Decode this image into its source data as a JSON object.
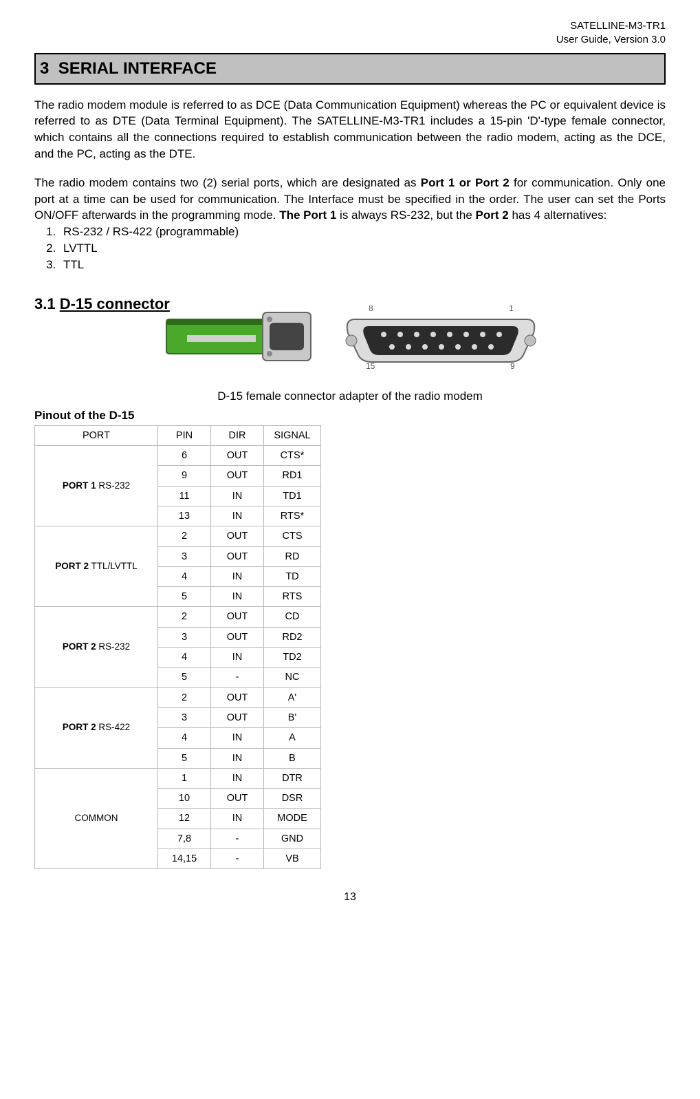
{
  "header": {
    "product": "SATELLINE-M3-TR1",
    "guide": "User Guide, Version 3.0"
  },
  "section": {
    "number": "3",
    "title": "SERIAL INTERFACE"
  },
  "para1_a": "The radio modem module is referred to as DCE (Data Communication Equipment) whereas the PC or equivalent device is referred to as DTE (Data Terminal Equipment). The SATELLINE-M3-TR1 includes a 15-pin 'D'-type female connector, which contains all the connections required to establish communication between the radio modem, acting as the DCE, and the PC, acting as the DTE.",
  "para2": {
    "a": "The radio modem contains two (2) serial ports, which are designated as ",
    "b": "Port 1 or Port 2",
    "c": " for communication. Only one port at a time can be used for communication. The Interface must be specified in the order. The user can set the Ports ON/OFF afterwards in the programming mode. ",
    "d": "The Port 1",
    "e": " is always RS-232, but the ",
    "f": "Port 2",
    "g": " has 4 alternatives:"
  },
  "alternatives": [
    "RS-232 / RS-422 (programmable)",
    "LVTTL",
    "TTL"
  ],
  "sub": {
    "number": "3.1",
    "title": "D-15 connector"
  },
  "caption": "D-15 female connector adapter of the radio modem",
  "table_title": "Pinout of the D-15",
  "table": {
    "headers": [
      "PORT",
      "PIN",
      "DIR",
      "SIGNAL"
    ],
    "groups": [
      {
        "port_bold": "PORT 1",
        "port_rest": " RS-232",
        "rows": [
          {
            "pin": "6",
            "dir": "OUT",
            "sig": "CTS*"
          },
          {
            "pin": "9",
            "dir": "OUT",
            "sig": "RD1"
          },
          {
            "pin": "11",
            "dir": "IN",
            "sig": "TD1"
          },
          {
            "pin": "13",
            "dir": "IN",
            "sig": "RTS*"
          }
        ]
      },
      {
        "port_bold": "PORT 2",
        "port_rest": " TTL/LVTTL",
        "rows": [
          {
            "pin": "2",
            "dir": "OUT",
            "sig": "CTS"
          },
          {
            "pin": "3",
            "dir": "OUT",
            "sig": "RD"
          },
          {
            "pin": "4",
            "dir": "IN",
            "sig": "TD"
          },
          {
            "pin": "5",
            "dir": "IN",
            "sig": "RTS"
          }
        ]
      },
      {
        "port_bold": "PORT 2",
        "port_rest": " RS-232",
        "rows": [
          {
            "pin": "2",
            "dir": "OUT",
            "sig": "CD"
          },
          {
            "pin": "3",
            "dir": "OUT",
            "sig": "RD2"
          },
          {
            "pin": "4",
            "dir": "IN",
            "sig": "TD2"
          },
          {
            "pin": "5",
            "dir": "-",
            "sig": "NC"
          }
        ]
      },
      {
        "port_bold": "PORT 2",
        "port_rest": " RS-422",
        "rows": [
          {
            "pin": "2",
            "dir": "OUT",
            "sig": "A'"
          },
          {
            "pin": "3",
            "dir": "OUT",
            "sig": "B'"
          },
          {
            "pin": "4",
            "dir": "IN",
            "sig": "A"
          },
          {
            "pin": "5",
            "dir": "IN",
            "sig": "B"
          }
        ]
      },
      {
        "port_bold": "",
        "port_rest": "COMMON",
        "rows": [
          {
            "pin": "1",
            "dir": "IN",
            "sig": "DTR"
          },
          {
            "pin": "10",
            "dir": "OUT",
            "sig": "DSR"
          },
          {
            "pin": "12",
            "dir": "IN",
            "sig": "MODE"
          },
          {
            "pin": "7,8",
            "dir": "-",
            "sig": "GND"
          },
          {
            "pin": "14,15",
            "dir": "-",
            "sig": "VB"
          }
        ]
      }
    ]
  },
  "page_number": "13",
  "colors": {
    "pcb_green": "#4aa82a",
    "conn_grey": "#c8c8c8",
    "conn_dark": "#666666",
    "bar_grey": "#c0c0c0"
  }
}
